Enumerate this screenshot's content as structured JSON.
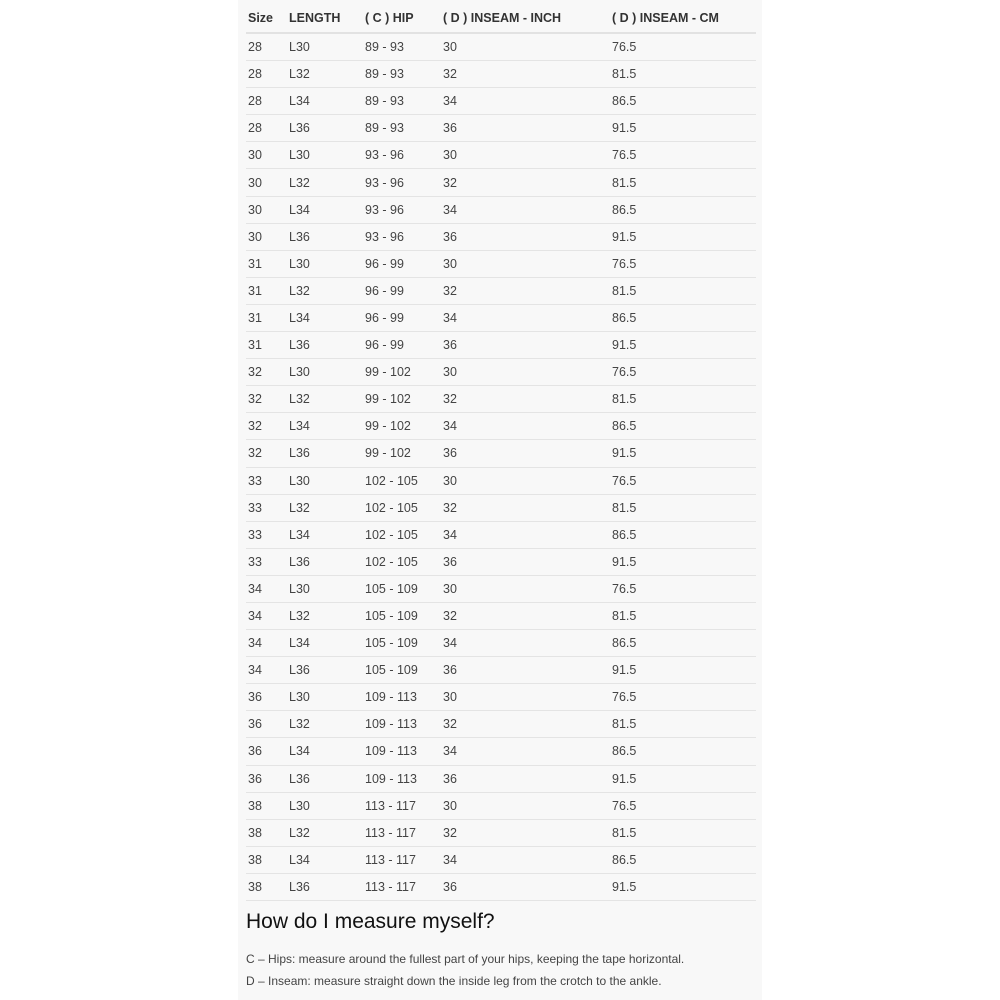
{
  "table": {
    "headers": [
      "Size",
      "LENGTH",
      "( C ) HIP",
      "( D ) INSEAM - INCH",
      "( D ) INSEAM - CM"
    ],
    "rows": [
      [
        "28",
        "L30",
        "89 - 93",
        "30",
        "76.5"
      ],
      [
        "28",
        "L32",
        "89 - 93",
        "32",
        "81.5"
      ],
      [
        "28",
        "L34",
        "89 - 93",
        "34",
        "86.5"
      ],
      [
        "28",
        "L36",
        "89 - 93",
        "36",
        "91.5"
      ],
      [
        "30",
        "L30",
        "93 - 96",
        "30",
        "76.5"
      ],
      [
        "30",
        "L32",
        "93 - 96",
        "32",
        "81.5"
      ],
      [
        "30",
        "L34",
        "93 - 96",
        "34",
        "86.5"
      ],
      [
        "30",
        "L36",
        "93 - 96",
        "36",
        "91.5"
      ],
      [
        "31",
        "L30",
        "96 - 99",
        "30",
        "76.5"
      ],
      [
        "31",
        "L32",
        "96 - 99",
        "32",
        "81.5"
      ],
      [
        "31",
        "L34",
        "96 - 99",
        "34",
        "86.5"
      ],
      [
        "31",
        "L36",
        "96 - 99",
        "36",
        "91.5"
      ],
      [
        "32",
        "L30",
        "99 - 102",
        "30",
        "76.5"
      ],
      [
        "32",
        "L32",
        "99 - 102",
        "32",
        "81.5"
      ],
      [
        "32",
        "L34",
        "99 - 102",
        "34",
        "86.5"
      ],
      [
        "32",
        "L36",
        "99 - 102",
        "36",
        "91.5"
      ],
      [
        "33",
        "L30",
        "102 - 105",
        "30",
        "76.5"
      ],
      [
        "33",
        "L32",
        "102 - 105",
        "32",
        "81.5"
      ],
      [
        "33",
        "L34",
        "102 - 105",
        "34",
        "86.5"
      ],
      [
        "33",
        "L36",
        "102 - 105",
        "36",
        "91.5"
      ],
      [
        "34",
        "L30",
        "105 - 109",
        "30",
        "76.5"
      ],
      [
        "34",
        "L32",
        "105 - 109",
        "32",
        "81.5"
      ],
      [
        "34",
        "L34",
        "105 - 109",
        "34",
        "86.5"
      ],
      [
        "34",
        "L36",
        "105 - 109",
        "36",
        "91.5"
      ],
      [
        "36",
        "L30",
        "109 - 113",
        "30",
        "76.5"
      ],
      [
        "36",
        "L32",
        "109 - 113",
        "32",
        "81.5"
      ],
      [
        "36",
        "L34",
        "109 - 113",
        "34",
        "86.5"
      ],
      [
        "36",
        "L36",
        "109 - 113",
        "36",
        "91.5"
      ],
      [
        "38",
        "L30",
        "113 - 117",
        "30",
        "76.5"
      ],
      [
        "38",
        "L32",
        "113 - 117",
        "32",
        "81.5"
      ],
      [
        "38",
        "L34",
        "113 - 117",
        "34",
        "86.5"
      ],
      [
        "38",
        "L36",
        "113 - 117",
        "36",
        "91.5"
      ]
    ]
  },
  "measure": {
    "title": "How do I measure myself?",
    "hips": "C – Hips: measure around the fullest part of your hips, keeping the tape horizontal.",
    "inseam": "D – Inseam: measure straight down the inside leg from the crotch to the ankle."
  }
}
